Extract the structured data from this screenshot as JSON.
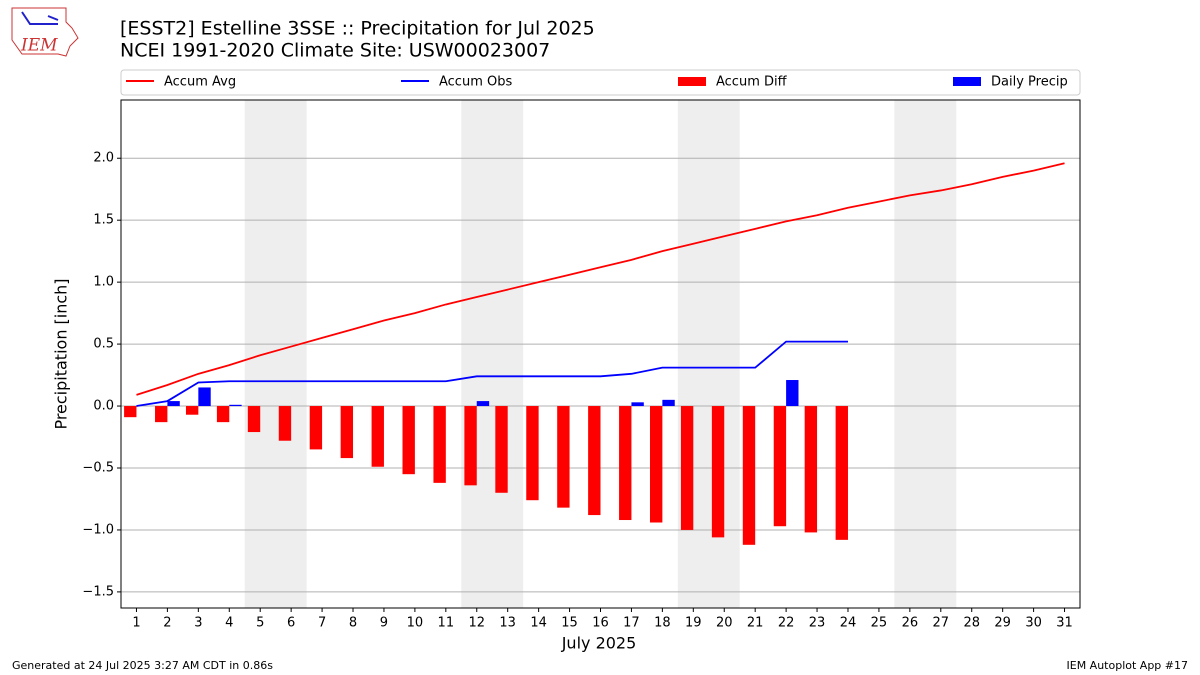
{
  "chart_data": {
    "type": "bar",
    "title": "[ESST2] Estelline 3SSE :: Precipitation for Jul 2025",
    "subtitle": "NCEI 1991-2020 Climate Site: USW00023007",
    "x_label": "July 2025",
    "y_label": "Precipitation [inch]",
    "logo_text": "IEM",
    "footer_left": "Generated at 24 Jul 2025 3:27 AM CDT in 0.86s",
    "footer_right": "IEM Autoplot App #17",
    "x": [
      1,
      2,
      3,
      4,
      5,
      6,
      7,
      8,
      9,
      10,
      11,
      12,
      13,
      14,
      15,
      16,
      17,
      18,
      19,
      20,
      21,
      22,
      23,
      24,
      25,
      26,
      27,
      28,
      29,
      30,
      31
    ],
    "xlim": [
      0.5,
      31.5
    ],
    "xticks": [
      1,
      2,
      3,
      4,
      5,
      6,
      7,
      8,
      9,
      10,
      11,
      12,
      13,
      14,
      15,
      16,
      17,
      18,
      19,
      20,
      21,
      22,
      23,
      24,
      25,
      26,
      27,
      28,
      29,
      30,
      31
    ],
    "ylim": [
      -1.63,
      2.47
    ],
    "yticks": [
      {
        "value": -1.5,
        "label": "−1.5"
      },
      {
        "value": -1.0,
        "label": "−1.0"
      },
      {
        "value": -0.5,
        "label": "−0.5"
      },
      {
        "value": 0,
        "label": "0.0"
      },
      {
        "value": 0.5,
        "label": "0.5"
      },
      {
        "value": 1.0,
        "label": "1.0"
      },
      {
        "value": 1.5,
        "label": "1.5"
      },
      {
        "value": 2.0,
        "label": "2.0"
      }
    ],
    "grid": true,
    "shaded_spans": [
      [
        4.5,
        6.5
      ],
      [
        11.5,
        13.5
      ],
      [
        18.5,
        20.5
      ],
      [
        25.5,
        27.5
      ]
    ],
    "shade_color": "#eeeeee",
    "series": [
      {
        "name": "Accum Avg",
        "type": "line",
        "color": "#ff0000",
        "values": [
          0.09,
          0.17,
          0.26,
          0.33,
          0.41,
          0.48,
          0.55,
          0.62,
          0.69,
          0.75,
          0.82,
          0.88,
          0.94,
          1.0,
          1.06,
          1.12,
          1.18,
          1.25,
          1.31,
          1.37,
          1.43,
          1.49,
          1.54,
          1.6,
          1.65,
          1.7,
          1.74,
          1.79,
          1.85,
          1.9,
          1.96
        ]
      },
      {
        "name": "Accum Obs",
        "type": "line",
        "color": "#0000ff",
        "values": [
          0.0,
          0.04,
          0.19,
          0.2,
          0.2,
          0.2,
          0.2,
          0.2,
          0.2,
          0.2,
          0.2,
          0.24,
          0.24,
          0.24,
          0.24,
          0.24,
          0.26,
          0.31,
          0.31,
          0.31,
          0.31,
          0.52,
          0.52,
          0.52,
          null,
          null,
          null,
          null,
          null,
          null,
          null
        ]
      },
      {
        "name": "Accum Diff",
        "type": "bar",
        "color": "#ff0000",
        "values": [
          -0.09,
          -0.13,
          -0.07,
          -0.13,
          -0.21,
          -0.28,
          -0.35,
          -0.42,
          -0.49,
          -0.55,
          -0.62,
          -0.64,
          -0.7,
          -0.76,
          -0.82,
          -0.88,
          -0.92,
          -0.94,
          -1.0,
          -1.06,
          -1.12,
          -0.97,
          -1.02,
          -1.08,
          null,
          null,
          null,
          null,
          null,
          null,
          null
        ]
      },
      {
        "name": "Daily Precip",
        "type": "bar",
        "color": "#0000ff",
        "values": [
          0,
          0.04,
          0.15,
          0.01,
          0,
          0,
          0,
          0,
          0,
          0,
          0,
          0.04,
          0,
          0,
          0,
          0,
          0.03,
          0.05,
          0,
          0,
          0,
          0.21,
          0,
          0,
          null,
          null,
          null,
          null,
          null,
          null,
          null
        ]
      }
    ]
  }
}
